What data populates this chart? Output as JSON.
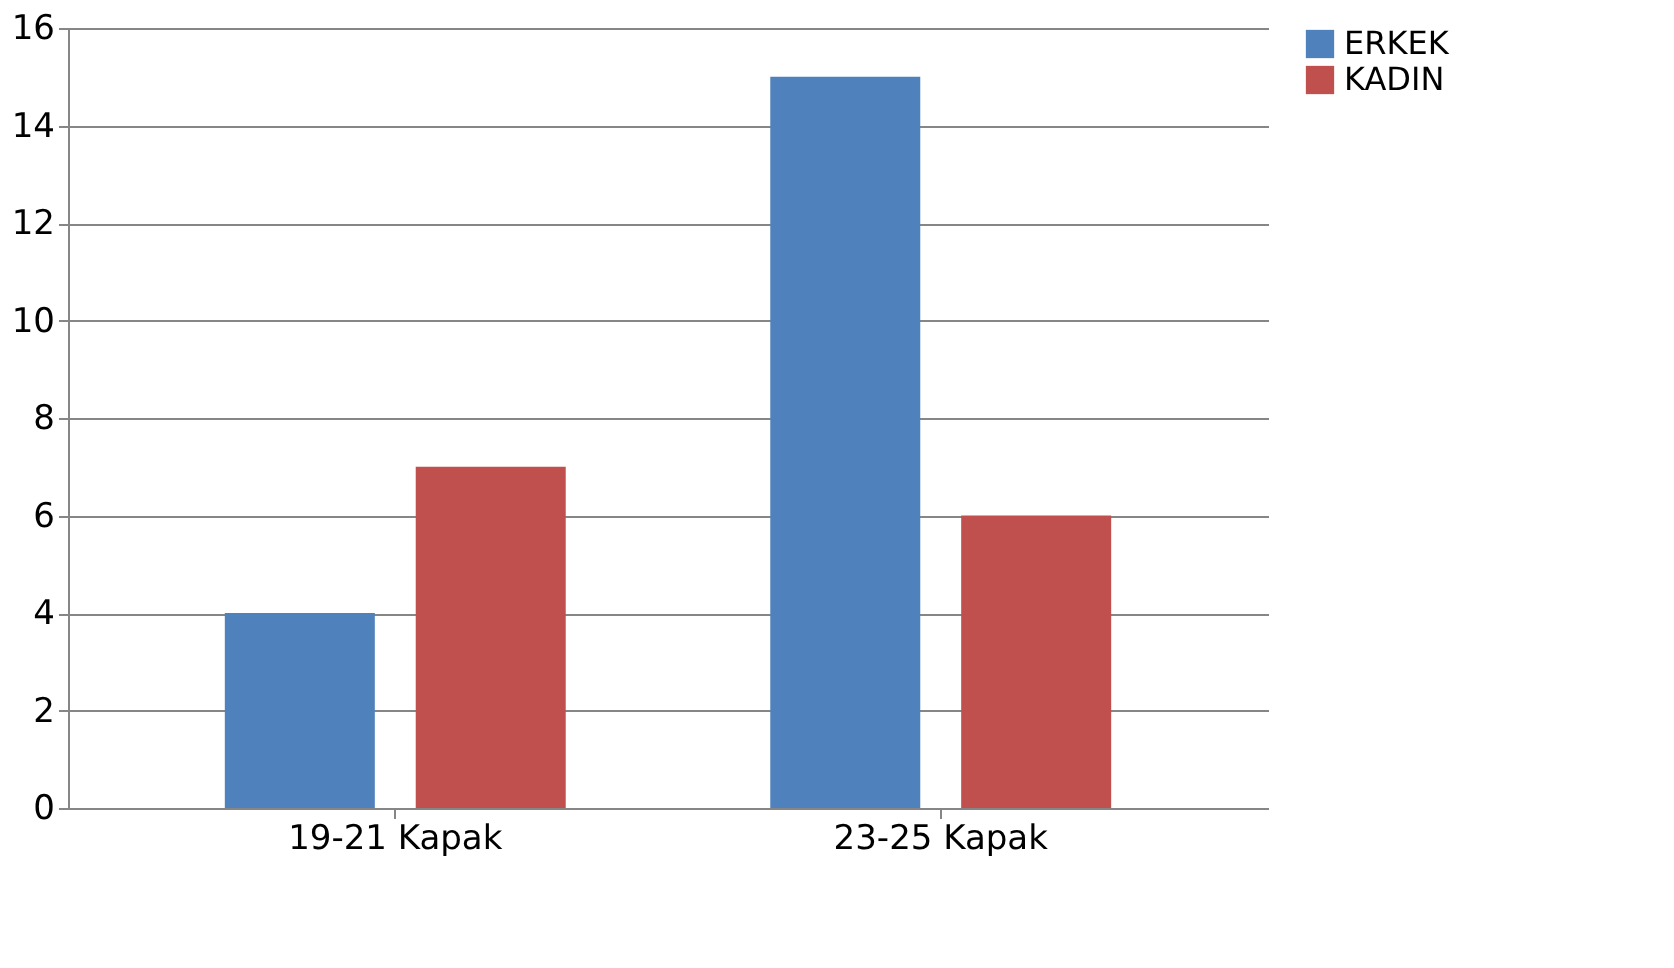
{
  "chart_data": {
    "type": "bar",
    "categories": [
      "19-21 Kapak",
      "23-25 Kapak"
    ],
    "series": [
      {
        "name": "ERKEK",
        "color": "#4f81bd",
        "values": [
          4,
          15
        ]
      },
      {
        "name": "KADIN",
        "color": "#c0504d",
        "values": [
          7,
          6
        ]
      }
    ],
    "ylim": [
      0,
      16
    ],
    "yticks": [
      0,
      2,
      4,
      6,
      8,
      10,
      12,
      14,
      16
    ],
    "grid": "y",
    "legend": "right"
  }
}
